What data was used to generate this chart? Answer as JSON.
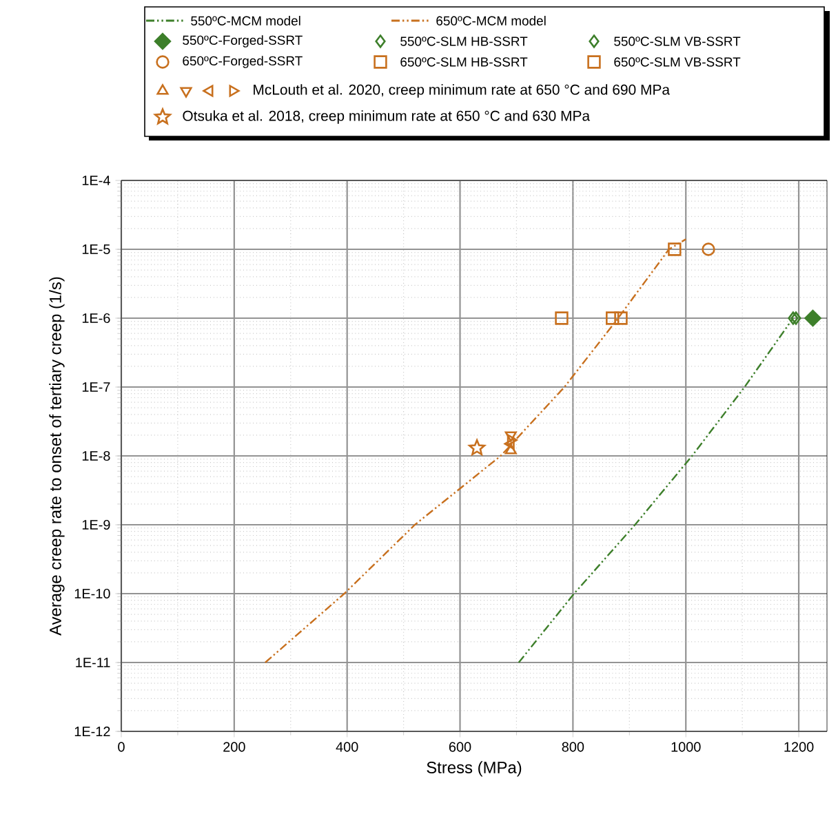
{
  "chart_data": {
    "type": "scatter",
    "xlabel": "Stress (MPa)",
    "ylabel": "Average creep rate to onset of tertiary creep (1/s)",
    "xlim": [
      0,
      1250
    ],
    "ylim": [
      1e-12,
      0.0001
    ],
    "xticks": [
      0,
      200,
      400,
      600,
      800,
      1000,
      1200
    ],
    "yticks": [
      {
        "value": 1e-12,
        "label": "1E-12"
      },
      {
        "value": 1e-11,
        "label": "1E-11"
      },
      {
        "value": 1e-10,
        "label": "1E-10"
      },
      {
        "value": 1e-09,
        "label": "1E-9"
      },
      {
        "value": 1e-08,
        "label": "1E-8"
      },
      {
        "value": 1e-07,
        "label": "1E-7"
      },
      {
        "value": 1e-06,
        "label": "1E-6"
      },
      {
        "value": 1e-05,
        "label": "1E-5"
      },
      {
        "value": 0.0001,
        "label": "1E-4"
      }
    ],
    "log": "y",
    "grid": true,
    "legend": "top",
    "series": [
      {
        "name": "550ºC-MCM model",
        "type": "line",
        "color": "#3d7f2a",
        "line_style": "dashed",
        "marker": "none",
        "x": [
          704,
          802,
          910,
          1011,
          1104,
          1190
        ],
        "values": [
          1e-11,
          1e-10,
          1e-09,
          1e-08,
          1e-07,
          1e-06
        ]
      },
      {
        "name": "650ºC-MCM model",
        "type": "line",
        "color": "#c8701e",
        "line_style": "dashed",
        "marker": "none",
        "x": [
          255,
          395,
          520,
          672,
          785,
          880,
          970,
          1000
        ],
        "values": [
          1e-11,
          1e-10,
          1e-09,
          1e-08,
          1e-07,
          1e-06,
          1e-05,
          1.4e-05
        ]
      },
      {
        "name": "550ºC-Forged-SSRT",
        "color": "#3d7f2a",
        "marker": "diamond",
        "x": [
          1225
        ],
        "values": [
          1e-06
        ]
      },
      {
        "name": "550ºC-SLM HB-SSRT",
        "color": "#3d7f2a",
        "marker": "diamond",
        "x": [
          1190
        ],
        "values": [
          1e-06
        ]
      },
      {
        "name": "550ºC-SLM VB-SSRT",
        "color": "#3d7f2a",
        "marker": "diamond",
        "x": [
          1195
        ],
        "values": [
          1e-06
        ]
      },
      {
        "name": "650ºC-Forged-SSRT",
        "color": "#c8701e",
        "marker": "circle",
        "x": [
          1040
        ],
        "values": [
          1e-05
        ]
      },
      {
        "name": "650ºC-SLM HB-SSRT",
        "color": "#c8701e",
        "marker": "square",
        "x": [
          780,
          870,
          980
        ],
        "values": [
          1e-06,
          1e-06,
          1e-05
        ]
      },
      {
        "name": "650ºC-SLM VB-SSRT",
        "color": "#c8701e",
        "marker": "square",
        "x": [
          885
        ],
        "values": [
          1e-06
        ]
      },
      {
        "name": "McLouth et al. 2020, creep minimum rate at 650 °C and 690 MPa",
        "color": "#c8701e",
        "marker": "triangle",
        "x": [
          690,
          690,
          690,
          690
        ],
        "values": [
          1.2e-08,
          2e-08,
          1.5e-08,
          1.7e-08
        ]
      },
      {
        "name": "Otsuka et al. 2018, creep minimum rate at 650 °C and 630 MPa",
        "color": "#c8701e",
        "marker": "star",
        "x": [
          630
        ],
        "values": [
          1.3e-08
        ]
      }
    ]
  }
}
